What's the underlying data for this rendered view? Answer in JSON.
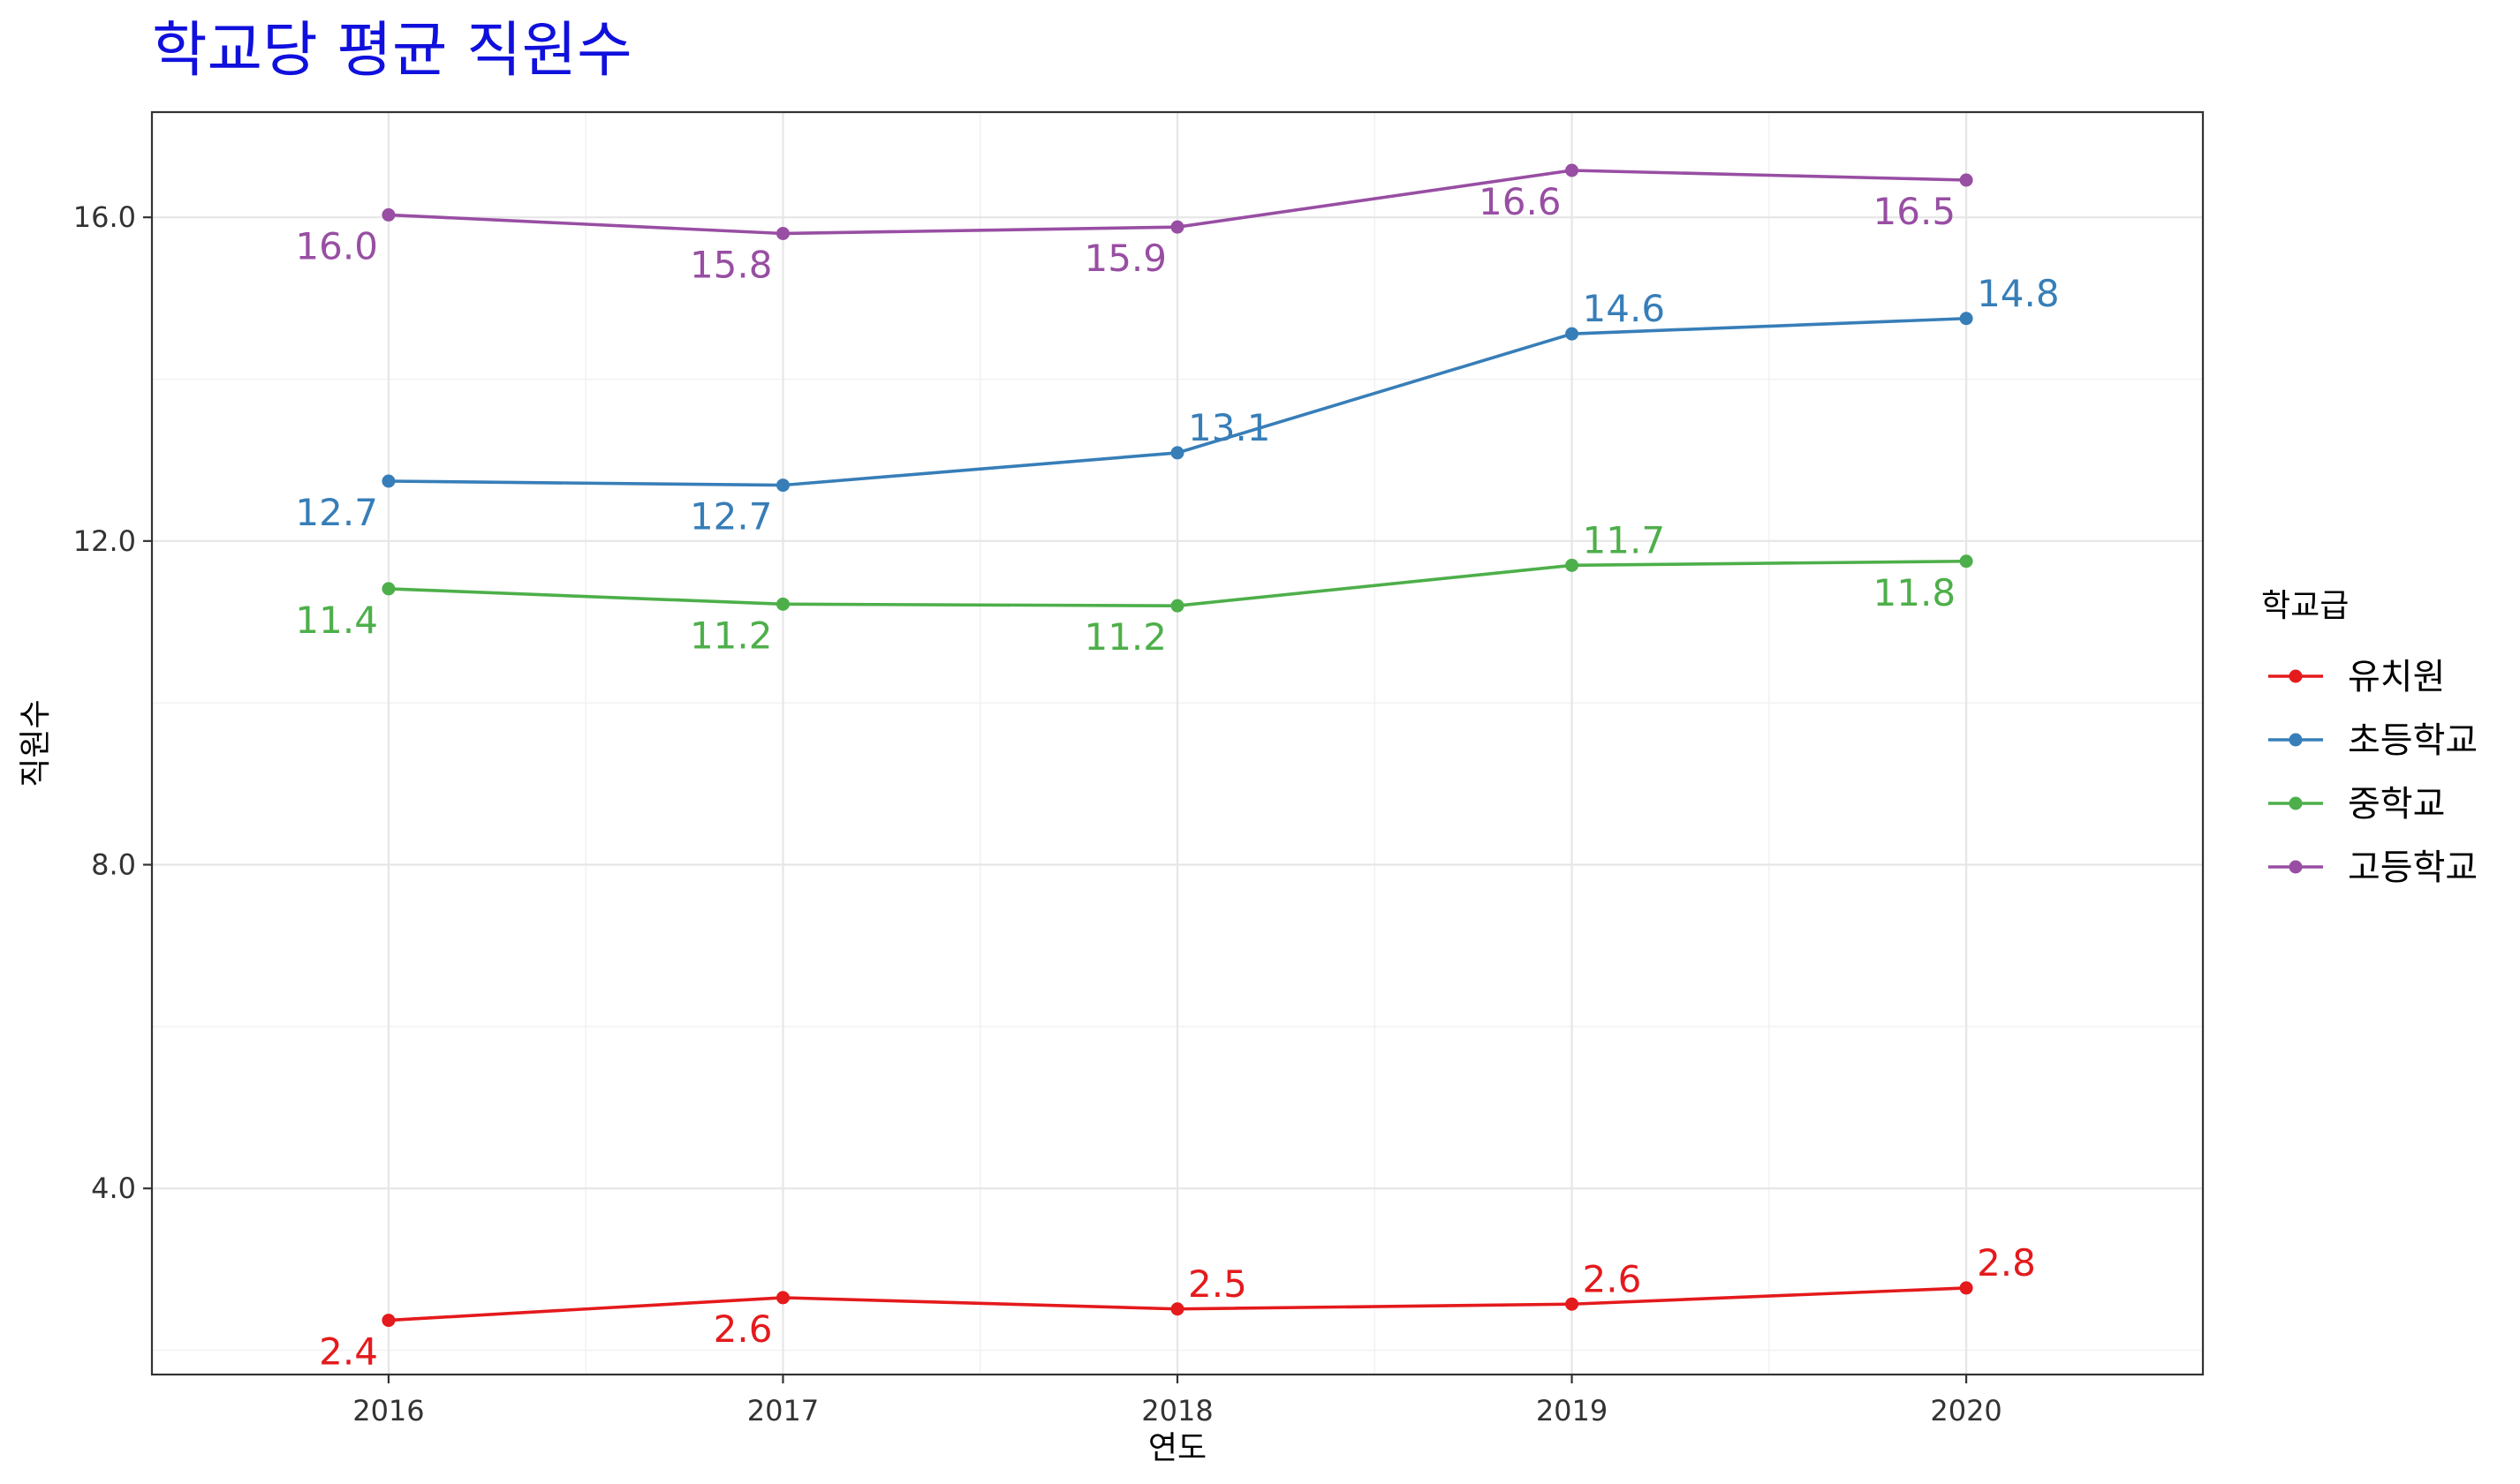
{
  "chart_data": {
    "type": "line",
    "title": "학교당 평균 직원수",
    "xlabel": "연도",
    "ylabel": "직원수",
    "x": [
      2016,
      2017,
      2018,
      2019,
      2020
    ],
    "x_tick_labels": [
      "2016",
      "2017",
      "2018",
      "2019",
      "2020"
    ],
    "y_ticks": [
      4.0,
      8.0,
      12.0,
      16.0
    ],
    "y_tick_labels": [
      "4.0",
      "8.0",
      "12.0",
      "16.0"
    ],
    "xlim": [
      2015.4,
      2020.6
    ],
    "ylim": [
      1.7,
      17.3
    ],
    "grid": true,
    "legend": {
      "title": "학교급",
      "position": "right"
    },
    "series": [
      {
        "name": "유치원",
        "color": "#E41A1C",
        "values": [
          2.37,
          2.65,
          2.51,
          2.57,
          2.77
        ],
        "labels": [
          "2.4",
          "2.6",
          "2.5",
          "2.6",
          "2.8"
        ],
        "label_pos": [
          "below",
          "below",
          "above",
          "above",
          "above"
        ]
      },
      {
        "name": "초등학교",
        "color": "#377EB8",
        "values": [
          12.74,
          12.69,
          13.09,
          14.56,
          14.75
        ],
        "labels": [
          "12.7",
          "12.7",
          "13.1",
          "14.6",
          "14.8"
        ],
        "label_pos": [
          "below",
          "below",
          "above",
          "above",
          "above"
        ]
      },
      {
        "name": "중학교",
        "color": "#4DAF4A",
        "values": [
          11.41,
          11.22,
          11.2,
          11.7,
          11.75
        ],
        "labels": [
          "11.4",
          "11.2",
          "11.2",
          "11.7",
          "11.8"
        ],
        "label_pos": [
          "below",
          "below",
          "below",
          "above",
          "below"
        ]
      },
      {
        "name": "고등학교",
        "color": "#984EA3",
        "values": [
          16.03,
          15.8,
          15.88,
          16.58,
          16.46
        ],
        "labels": [
          "16.0",
          "15.8",
          "15.9",
          "16.6",
          "16.5"
        ],
        "label_pos": [
          "below",
          "below",
          "below",
          "below",
          "below"
        ]
      }
    ]
  }
}
